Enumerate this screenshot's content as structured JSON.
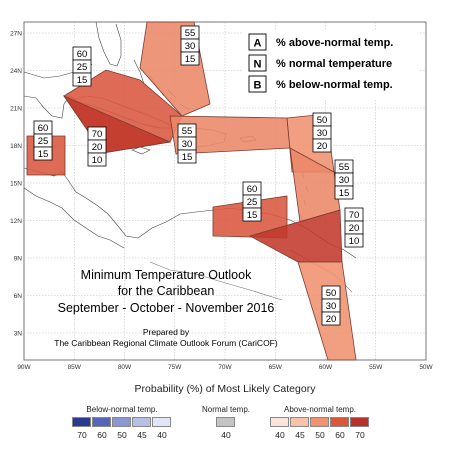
{
  "map": {
    "title_lines": [
      "Minimum Temperature Outlook",
      "for the Caribbean",
      "September - October - November 2016"
    ],
    "credit_lines": [
      "Prepared by",
      "The Caribbean Regional Climate Outlook Forum (CariCOF)"
    ],
    "lon_ticks": [
      "90W",
      "85W",
      "80W",
      "75W",
      "70W",
      "65W",
      "60W",
      "55W",
      "50W"
    ],
    "lat_ticks": [
      "27N",
      "24N",
      "21N",
      "18N",
      "15N",
      "12N",
      "9N",
      "6N",
      "3N"
    ],
    "key": [
      {
        "letter": "A",
        "text": "% above-normal temp."
      },
      {
        "letter": "N",
        "text": "% normal temperature"
      },
      {
        "letter": "B",
        "text": "% below-normal temp."
      }
    ],
    "regions": [
      {
        "name": "bahamas",
        "values": [
          "55",
          "30",
          "15"
        ],
        "level": 55
      },
      {
        "name": "cuba-jamaica",
        "values": [
          "60",
          "25",
          "15"
        ],
        "level": 60
      },
      {
        "name": "central-america",
        "values": [
          "60",
          "25",
          "15"
        ],
        "level": 60
      },
      {
        "name": "cayman",
        "values": [
          "70",
          "20",
          "10"
        ],
        "level": 70
      },
      {
        "name": "hispaniola",
        "values": [
          "55",
          "30",
          "15"
        ],
        "level": 55
      },
      {
        "name": "leeward-islands",
        "values": [
          "50",
          "30",
          "20"
        ],
        "level": 50
      },
      {
        "name": "windward-islands",
        "values": [
          "55",
          "30",
          "15"
        ],
        "level": 55
      },
      {
        "name": "abc-islands",
        "values": [
          "60",
          "25",
          "15"
        ],
        "level": 60
      },
      {
        "name": "trinidad",
        "values": [
          "70",
          "20",
          "10"
        ],
        "level": 70
      },
      {
        "name": "guianas",
        "values": [
          "50",
          "30",
          "20"
        ],
        "level": 50
      }
    ]
  },
  "legend": {
    "title": "Probability (%) of Most Likely Category",
    "below": {
      "label": "Below-normal temp.",
      "values": [
        "70",
        "60",
        "50",
        "45",
        "40"
      ],
      "colors": [
        "#2b3a8f",
        "#5566b8",
        "#8c96d2",
        "#b8bfe4",
        "#e2e5f5"
      ]
    },
    "normal": {
      "label": "Normal temp.",
      "values": [
        "40"
      ],
      "colors": [
        "#c4c4c4"
      ]
    },
    "above": {
      "label": "Above-normal temp.",
      "values": [
        "40",
        "45",
        "50",
        "60",
        "70"
      ],
      "colors": [
        "#fbe3da",
        "#f8c1a9",
        "#f0926f",
        "#d9573d",
        "#b8312a"
      ]
    }
  },
  "colors": {
    "level50": "#f0926f",
    "level55": "#ec8768",
    "level60": "#d9573d",
    "level70": "#c1392c"
  }
}
